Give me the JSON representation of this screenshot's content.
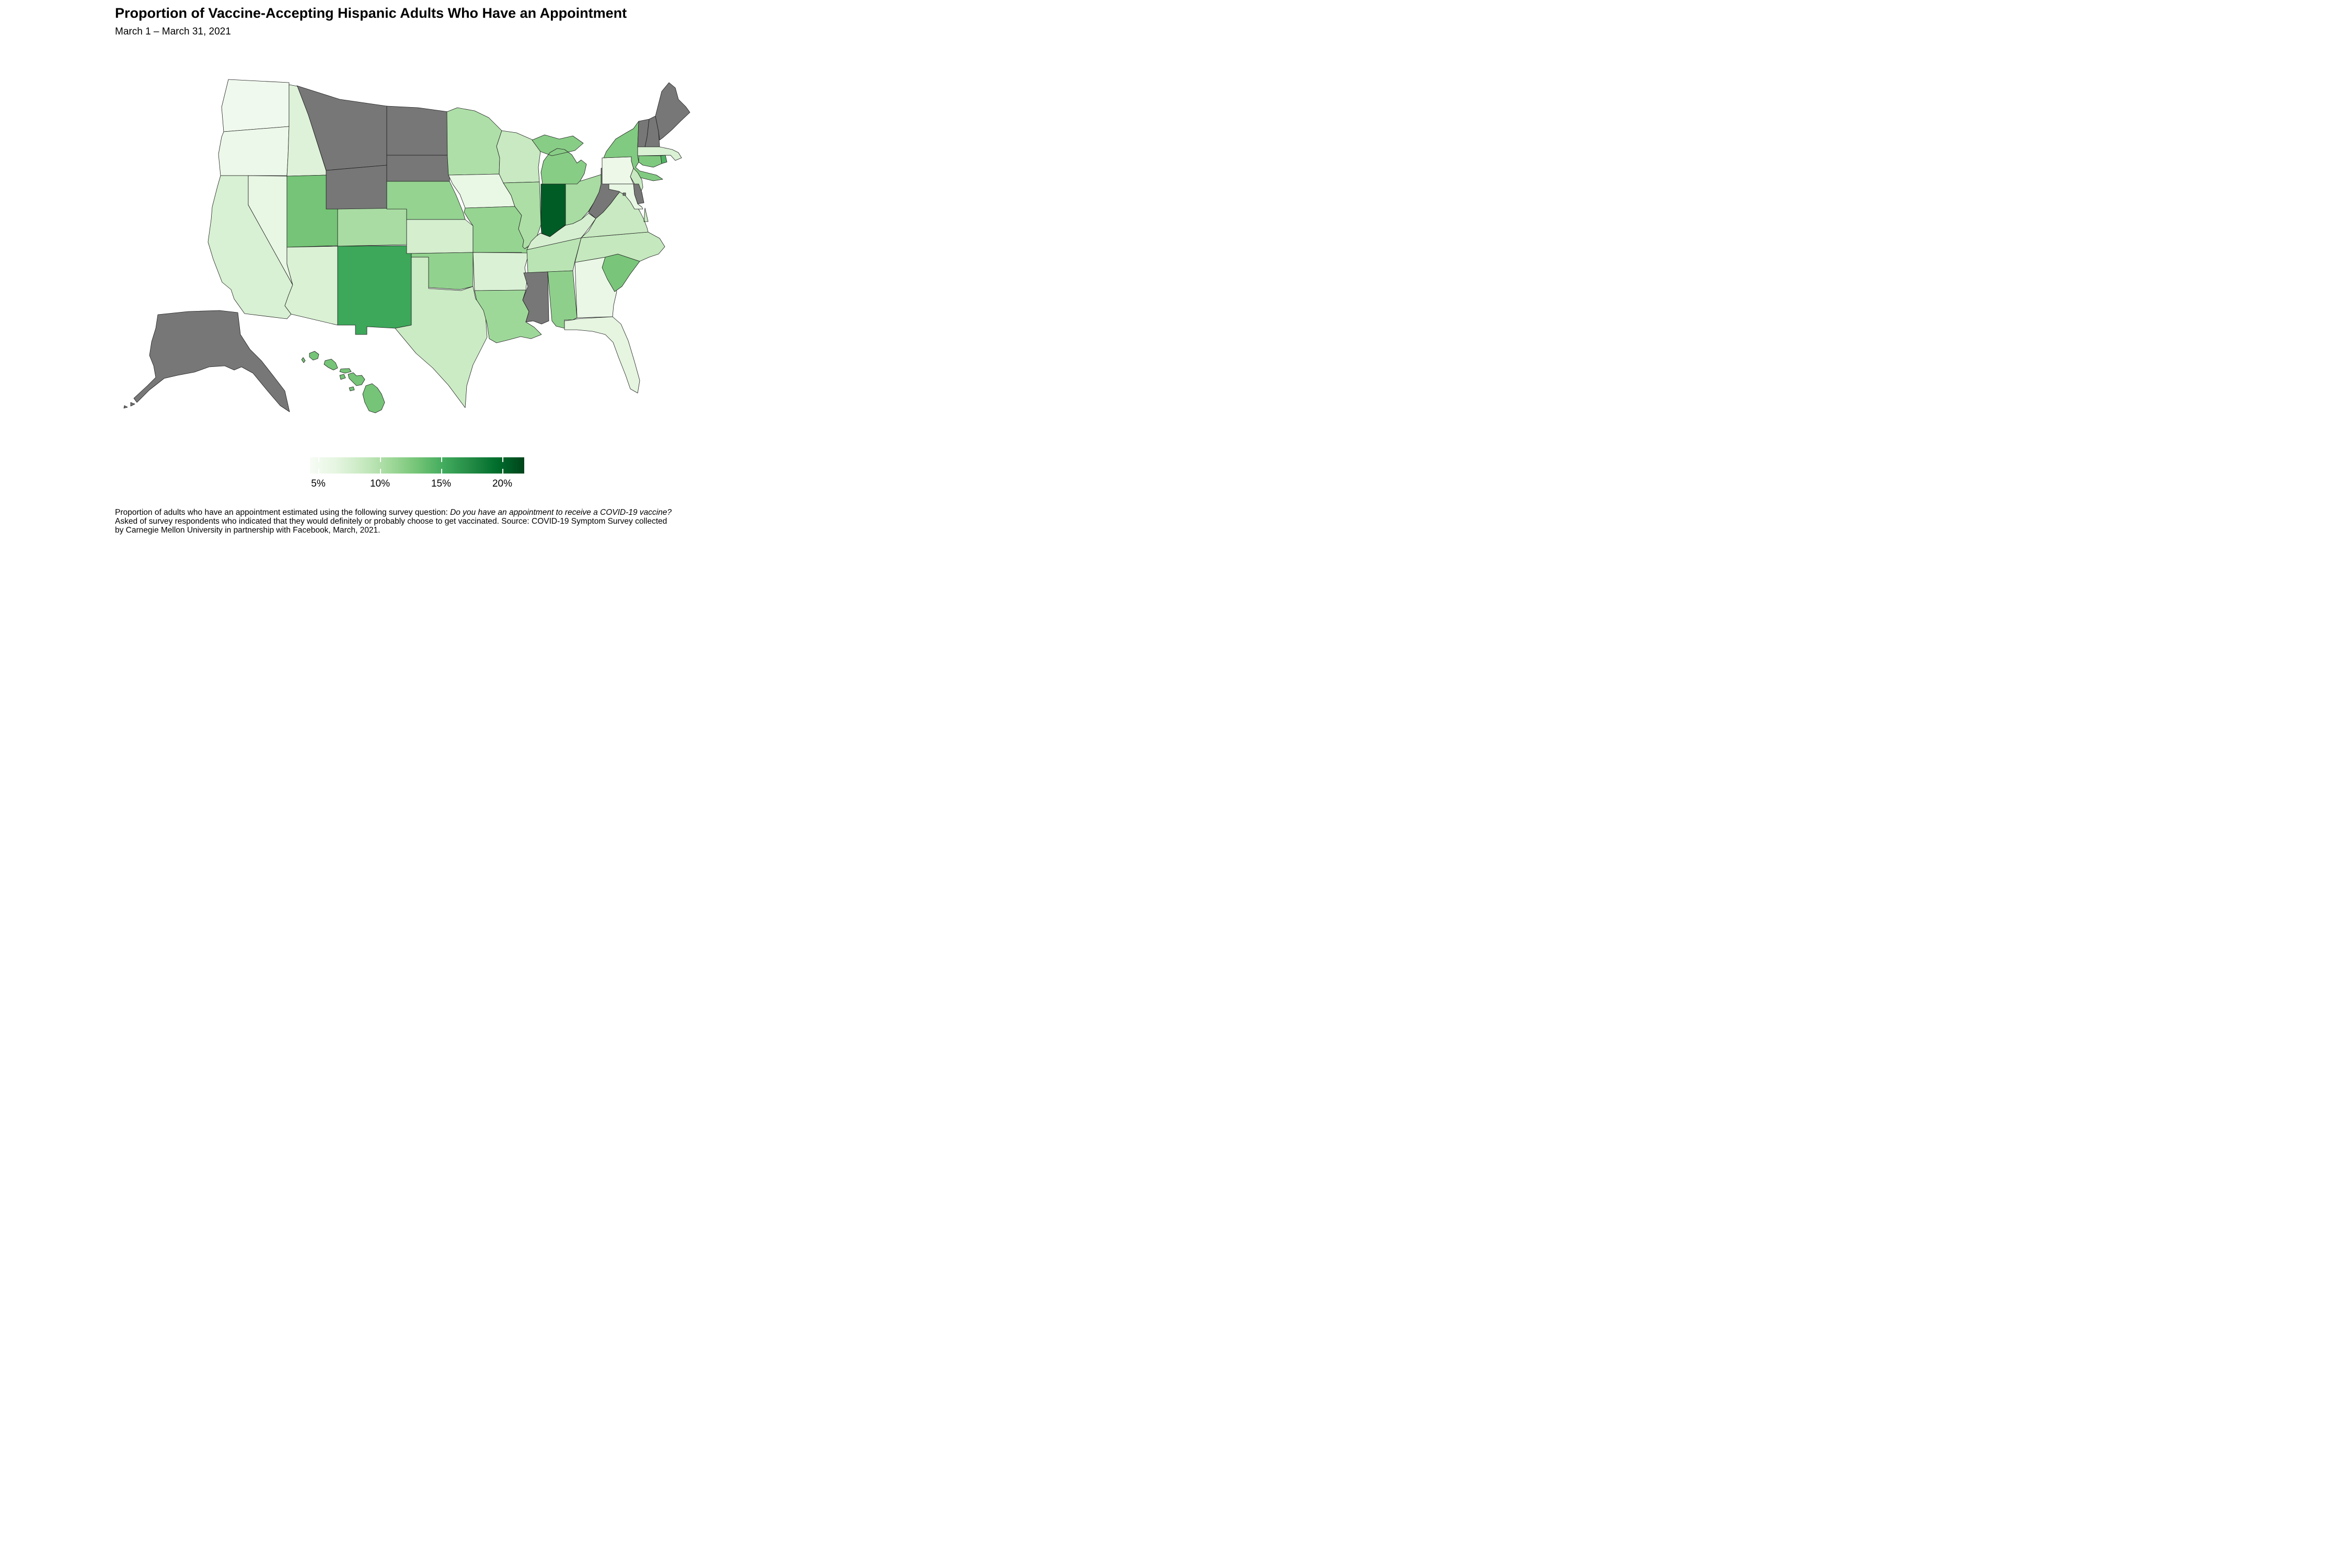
{
  "title": "Proportion of Vaccine-Accepting Hispanic Adults Who Have an Appointment",
  "subtitle": "March 1 – March 31, 2021",
  "legend": {
    "tick_labels": [
      "5%",
      "10%",
      "15%",
      "20%"
    ],
    "tick_values": [
      5,
      10,
      15,
      20
    ]
  },
  "footnote": {
    "line1_prefix": "Proportion of adults who have an appointment estimated using the following survey question: ",
    "line1_italic": "Do you have an appointment to receive a COVID-19 vaccine?",
    "line2": "Asked of survey respondents who indicated that they would definitely or probably choose to get vaccinated. Source: COVID-19 Symptom Survey collected",
    "line3": "by Carnegie Mellon University in partnership with Facebook, March, 2021."
  },
  "chart_data": {
    "type": "heatmap",
    "subtype": "us-state-choropleth",
    "unit": "percent",
    "na_color": "#777777",
    "color_scale": {
      "domain": [
        4.3,
        21.8
      ],
      "colors": [
        "#f7fcf5",
        "#e5f5e0",
        "#c7e9c0",
        "#a1d99b",
        "#74c476",
        "#41ab5d",
        "#238b45",
        "#006d2c",
        "#00441b"
      ]
    },
    "states": [
      {
        "abbr": "AL",
        "name": "Alabama",
        "value": 11.8
      },
      {
        "abbr": "AK",
        "name": "Alaska",
        "value": null
      },
      {
        "abbr": "AZ",
        "name": "Arizona",
        "value": 7.3
      },
      {
        "abbr": "AR",
        "name": "Arkansas",
        "value": 7.2
      },
      {
        "abbr": "CA",
        "name": "California",
        "value": 7.4
      },
      {
        "abbr": "CO",
        "name": "Colorado",
        "value": 10.4
      },
      {
        "abbr": "CT",
        "name": "Connecticut",
        "value": 12.5
      },
      {
        "abbr": "DE",
        "name": "Delaware",
        "value": null
      },
      {
        "abbr": "DC",
        "name": "District of Columbia",
        "value": null
      },
      {
        "abbr": "FL",
        "name": "Florida",
        "value": 6.5
      },
      {
        "abbr": "GA",
        "name": "Georgia",
        "value": 5.9
      },
      {
        "abbr": "HI",
        "name": "Hawaii",
        "value": 13.0
      },
      {
        "abbr": "ID",
        "name": "Idaho",
        "value": 7.0
      },
      {
        "abbr": "IL",
        "name": "Illinois",
        "value": 10.2
      },
      {
        "abbr": "IN",
        "name": "Indiana",
        "value": 20.5
      },
      {
        "abbr": "IA",
        "name": "Iowa",
        "value": 6.0
      },
      {
        "abbr": "KS",
        "name": "Kansas",
        "value": 7.7
      },
      {
        "abbr": "KY",
        "name": "Kentucky",
        "value": 7.5
      },
      {
        "abbr": "LA",
        "name": "Louisiana",
        "value": 11.0
      },
      {
        "abbr": "ME",
        "name": "Maine",
        "value": null
      },
      {
        "abbr": "MD",
        "name": "Maryland",
        "value": 6.1
      },
      {
        "abbr": "MA",
        "name": "Massachusetts",
        "value": 7.3
      },
      {
        "abbr": "MI",
        "name": "Michigan",
        "value": 12.1
      },
      {
        "abbr": "MN",
        "name": "Minnesota",
        "value": 10.1
      },
      {
        "abbr": "MS",
        "name": "Mississippi",
        "value": null
      },
      {
        "abbr": "MO",
        "name": "Missouri",
        "value": 11.4
      },
      {
        "abbr": "MT",
        "name": "Montana",
        "value": null
      },
      {
        "abbr": "NE",
        "name": "Nebraska",
        "value": 11.5
      },
      {
        "abbr": "NV",
        "name": "Nevada",
        "value": 6.1
      },
      {
        "abbr": "NH",
        "name": "New Hampshire",
        "value": null
      },
      {
        "abbr": "NJ",
        "name": "New Jersey",
        "value": 8.6
      },
      {
        "abbr": "NM",
        "name": "New Mexico",
        "value": 15.5
      },
      {
        "abbr": "NY",
        "name": "New York",
        "value": 12.4
      },
      {
        "abbr": "NC",
        "name": "North Carolina",
        "value": 8.8
      },
      {
        "abbr": "ND",
        "name": "North Dakota",
        "value": null
      },
      {
        "abbr": "OH",
        "name": "Ohio",
        "value": 10.4
      },
      {
        "abbr": "OK",
        "name": "Oklahoma",
        "value": 11.6
      },
      {
        "abbr": "OR",
        "name": "Oregon",
        "value": 5.6
      },
      {
        "abbr": "PA",
        "name": "Pennsylvania",
        "value": 5.5
      },
      {
        "abbr": "RI",
        "name": "Rhode Island",
        "value": 14.5
      },
      {
        "abbr": "SC",
        "name": "South Carolina",
        "value": 12.8
      },
      {
        "abbr": "SD",
        "name": "South Dakota",
        "value": null
      },
      {
        "abbr": "TN",
        "name": "Tennessee",
        "value": 9.4
      },
      {
        "abbr": "TX",
        "name": "Texas",
        "value": 8.4
      },
      {
        "abbr": "UT",
        "name": "Utah",
        "value": 13.0
      },
      {
        "abbr": "VT",
        "name": "Vermont",
        "value": null
      },
      {
        "abbr": "VA",
        "name": "Virginia",
        "value": 8.6
      },
      {
        "abbr": "WA",
        "name": "Washington",
        "value": 5.1
      },
      {
        "abbr": "WV",
        "name": "West Virginia",
        "value": null
      },
      {
        "abbr": "WI",
        "name": "Wisconsin",
        "value": 8.6
      },
      {
        "abbr": "WY",
        "name": "Wyoming",
        "value": null
      }
    ]
  }
}
